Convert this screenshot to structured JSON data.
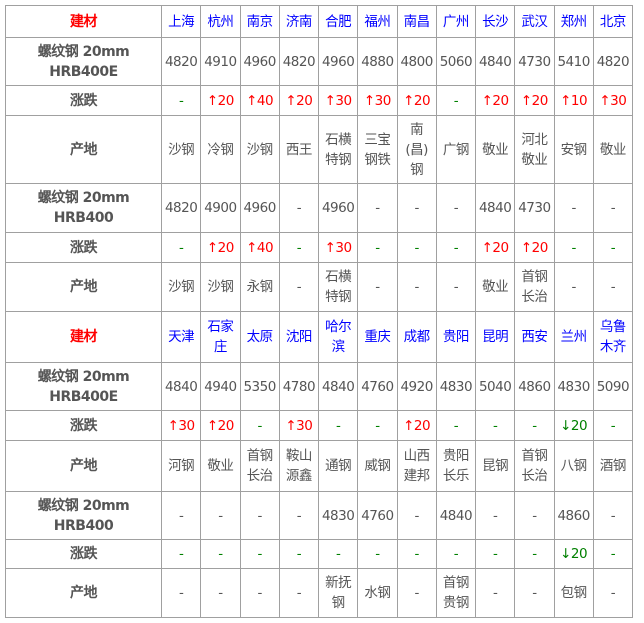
{
  "colors": {
    "header_label": "#ff0000",
    "city": "#0000ff",
    "up": "#ff0000",
    "down": "#008000",
    "flat": "#008000"
  },
  "icons": {
    "up": "arrow-up-icon",
    "down": "arrow-down-icon"
  },
  "sections": [
    {
      "header_label": "建材",
      "cities": [
        "上海",
        "杭州",
        "南京",
        "济南",
        "合肥",
        "福州",
        "南昌",
        "广州",
        "长沙",
        "武汉",
        "郑州",
        "北京"
      ],
      "rows": [
        {
          "label": "螺纹钢 20mm HRB400E",
          "type": "price",
          "values": [
            "4820",
            "4910",
            "4960",
            "4820",
            "4960",
            "4880",
            "4800",
            "5060",
            "4840",
            "4730",
            "5410",
            "4820"
          ]
        },
        {
          "label": "涨跌",
          "type": "change",
          "values": [
            "-",
            "↑20",
            "↑40",
            "↑20",
            "↑30",
            "↑30",
            "↑20",
            "-",
            "↑20",
            "↑20",
            "↑10",
            "↑30"
          ]
        },
        {
          "label": "产地",
          "type": "origin",
          "values": [
            "沙钢",
            "冷钢",
            "沙钢",
            "西王",
            "石横特钢",
            "三宝钢铁",
            "南(昌)钢",
            "广钢",
            "敬业",
            "河北敬业",
            "安钢",
            "敬业"
          ]
        },
        {
          "label": "螺纹钢 20mm HRB400",
          "type": "price",
          "values": [
            "4820",
            "4900",
            "4960",
            "-",
            "4960",
            "-",
            "-",
            "-",
            "4840",
            "4730",
            "-",
            "-"
          ]
        },
        {
          "label": "涨跌",
          "type": "change",
          "values": [
            "-",
            "↑20",
            "↑40",
            "-",
            "↑30",
            "-",
            "-",
            "-",
            "↑20",
            "↑20",
            "-",
            "-"
          ]
        },
        {
          "label": "产地",
          "type": "origin",
          "values": [
            "沙钢",
            "沙钢",
            "永钢",
            "-",
            "石横特钢",
            "-",
            "-",
            "-",
            "敬业",
            "首钢长治",
            "-",
            "-"
          ]
        }
      ]
    },
    {
      "header_label": "建材",
      "cities": [
        "天津",
        "石家庄",
        "太原",
        "沈阳",
        "哈尔滨",
        "重庆",
        "成都",
        "贵阳",
        "昆明",
        "西安",
        "兰州",
        "乌鲁木齐"
      ],
      "rows": [
        {
          "label": "螺纹钢 20mm HRB400E",
          "type": "price",
          "values": [
            "4840",
            "4940",
            "5350",
            "4780",
            "4840",
            "4760",
            "4920",
            "4830",
            "5040",
            "4860",
            "4830",
            "5090"
          ]
        },
        {
          "label": "涨跌",
          "type": "change",
          "values": [
            "↑30",
            "↑20",
            "-",
            "↑30",
            "-",
            "-",
            "↑20",
            "-",
            "-",
            "-",
            "↓20",
            "-"
          ]
        },
        {
          "label": "产地",
          "type": "origin",
          "values": [
            "河钢",
            "敬业",
            "首钢长治",
            "鞍山源鑫",
            "通钢",
            "威钢",
            "山西建邦",
            "贵阳长乐",
            "昆钢",
            "首钢长治",
            "八钢",
            "酒钢"
          ]
        },
        {
          "label": "螺纹钢 20mm HRB400",
          "type": "price",
          "values": [
            "-",
            "-",
            "-",
            "-",
            "4830",
            "4760",
            "-",
            "4840",
            "-",
            "-",
            "4860",
            "-"
          ]
        },
        {
          "label": "涨跌",
          "type": "change",
          "values": [
            "-",
            "-",
            "-",
            "-",
            "-",
            "-",
            "-",
            "-",
            "-",
            "-",
            "↓20",
            "-"
          ]
        },
        {
          "label": "产地",
          "type": "origin",
          "values": [
            "-",
            "-",
            "-",
            "-",
            "新抚钢",
            "水钢",
            "-",
            "首钢贵钢",
            "-",
            "-",
            "包钢",
            "-"
          ]
        }
      ]
    }
  ]
}
